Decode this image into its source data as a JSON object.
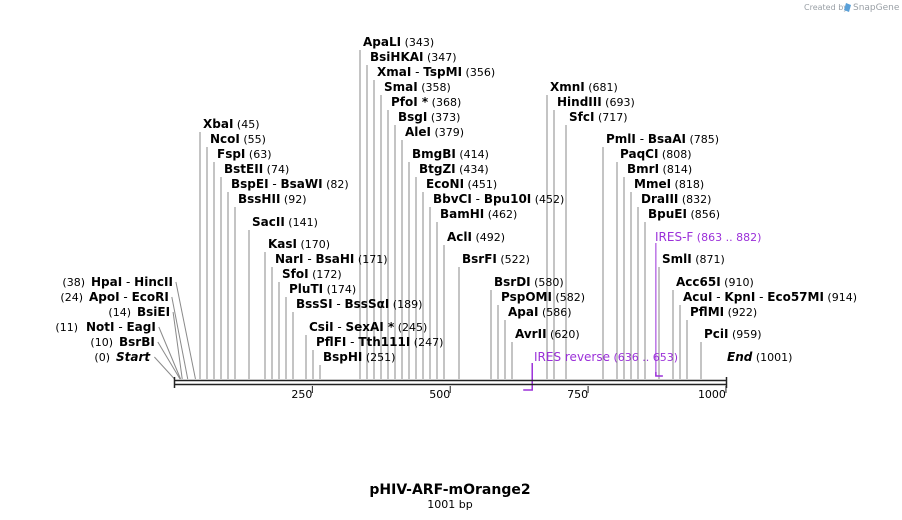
{
  "credit": {
    "text": "Created by",
    "brand": "SnapGene"
  },
  "title": "pHIV-ARF-mOrange2",
  "length_label": "1001 bp",
  "sequence_length": 1001,
  "colors": {
    "primer": "#9b30d9",
    "leader": "#8a8a8a",
    "backbone": "#222222"
  },
  "scale": {
    "ticks": [
      250,
      500,
      750,
      1000
    ]
  },
  "ends": [
    {
      "name": "Start",
      "pos": 0,
      "pos_label": "(0)",
      "side": "left"
    },
    {
      "name": "End",
      "pos": 1001,
      "pos_label": "(1001)",
      "side": "right"
    }
  ],
  "sites": [
    {
      "name": "BsrBI",
      "pos": 10,
      "pos_label": "(10)",
      "side": "left"
    },
    {
      "name": "NotI",
      "extra": "EagI",
      "pos": 11,
      "pos_label": "(11)",
      "side": "left"
    },
    {
      "name": "BsiEI",
      "pos": 14,
      "pos_label": "(14)",
      "side": "left"
    },
    {
      "name": "ApoI",
      "extra": "EcoRI",
      "pos": 24,
      "pos_label": "(24)",
      "side": "left"
    },
    {
      "name": "HpaI",
      "extra": "HincII",
      "pos": 38,
      "pos_label": "(38)",
      "side": "left"
    },
    {
      "name": "XbaI",
      "pos": 45,
      "pos_label": "(45)"
    },
    {
      "name": "NcoI",
      "pos": 55,
      "pos_label": "(55)"
    },
    {
      "name": "FspI",
      "pos": 63,
      "pos_label": "(63)"
    },
    {
      "name": "BstEII",
      "pos": 74,
      "pos_label": "(74)"
    },
    {
      "name": "BspEI",
      "extra": "BsaWI",
      "pos": 82,
      "pos_label": "(82)"
    },
    {
      "name": "BssHII",
      "pos": 92,
      "pos_label": "(92)"
    },
    {
      "name": "SacII",
      "pos": 141,
      "pos_label": "(141)"
    },
    {
      "name": "KasI",
      "pos": 170,
      "pos_label": "(170)"
    },
    {
      "name": "NarI",
      "extra": "BsaHI",
      "pos": 171,
      "pos_label": "(171)"
    },
    {
      "name": "SfoI",
      "pos": 172,
      "pos_label": "(172)"
    },
    {
      "name": "PluTI",
      "pos": 174,
      "pos_label": "(174)"
    },
    {
      "name": "BssSI",
      "extra": "BssSαI",
      "pos": 189,
      "pos_label": "(189)"
    },
    {
      "name": "CsiI",
      "extra": "SexAI *",
      "pos": 245,
      "pos_label": "(245)"
    },
    {
      "name": "PflFI",
      "extra": "Tth111I",
      "pos": 247,
      "pos_label": "(247)"
    },
    {
      "name": "BspHI",
      "pos": 251,
      "pos_label": "(251)"
    },
    {
      "name": "ApaLI",
      "pos": 343,
      "pos_label": "(343)"
    },
    {
      "name": "BsiHKAI",
      "pos": 347,
      "pos_label": "(347)"
    },
    {
      "name": "XmaI",
      "extra": "TspMI",
      "pos": 356,
      "pos_label": "(356)"
    },
    {
      "name": "SmaI",
      "pos": 358,
      "pos_label": "(358)"
    },
    {
      "name": "PfoI *",
      "pos": 368,
      "pos_label": "(368)"
    },
    {
      "name": "BsgI",
      "pos": 373,
      "pos_label": "(373)"
    },
    {
      "name": "AleI",
      "pos": 379,
      "pos_label": "(379)"
    },
    {
      "name": "BmgBI",
      "pos": 414,
      "pos_label": "(414)"
    },
    {
      "name": "BtgZI",
      "pos": 434,
      "pos_label": "(434)"
    },
    {
      "name": "EcoNI",
      "pos": 451,
      "pos_label": "(451)"
    },
    {
      "name": "BbvCI",
      "extra": "Bpu10I",
      "pos": 452,
      "pos_label": "(452)"
    },
    {
      "name": "BamHI",
      "pos": 462,
      "pos_label": "(462)"
    },
    {
      "name": "AclI",
      "pos": 492,
      "pos_label": "(492)"
    },
    {
      "name": "BsrFI",
      "pos": 522,
      "pos_label": "(522)"
    },
    {
      "name": "BsrDI",
      "pos": 580,
      "pos_label": "(580)"
    },
    {
      "name": "PspOMI",
      "pos": 582,
      "pos_label": "(582)"
    },
    {
      "name": "ApaI",
      "pos": 586,
      "pos_label": "(586)"
    },
    {
      "name": "AvrII",
      "pos": 620,
      "pos_label": "(620)"
    },
    {
      "name": "XmnI",
      "pos": 681,
      "pos_label": "(681)"
    },
    {
      "name": "HindIII",
      "pos": 693,
      "pos_label": "(693)"
    },
    {
      "name": "SfcI",
      "pos": 717,
      "pos_label": "(717)"
    },
    {
      "name": "PmlI",
      "extra": "BsaAI",
      "pos": 785,
      "pos_label": "(785)"
    },
    {
      "name": "PaqCI",
      "pos": 808,
      "pos_label": "(808)"
    },
    {
      "name": "BmrI",
      "pos": 814,
      "pos_label": "(814)"
    },
    {
      "name": "MmeI",
      "pos": 818,
      "pos_label": "(818)"
    },
    {
      "name": "DraIII",
      "pos": 832,
      "pos_label": "(832)"
    },
    {
      "name": "BpuEI",
      "pos": 856,
      "pos_label": "(856)"
    },
    {
      "name": "SmlI",
      "pos": 871,
      "pos_label": "(871)"
    },
    {
      "name": "Acc65I",
      "pos": 910,
      "pos_label": "(910)"
    },
    {
      "name": "AcuI",
      "extra": "KpnI",
      "extra2": "Eco57MI",
      "pos": 914,
      "pos_label": "(914)"
    },
    {
      "name": "PflMI",
      "pos": 922,
      "pos_label": "(922)"
    },
    {
      "name": "PciI",
      "pos": 959,
      "pos_label": "(959)"
    }
  ],
  "primers": [
    {
      "name": "IRES-F",
      "range_label": "(863 .. 882)",
      "start": 863,
      "end": 882,
      "strand": "forward"
    },
    {
      "name": "IRES reverse",
      "range_label": "(636 .. 653)",
      "start": 636,
      "end": 653,
      "strand": "reverse"
    }
  ]
}
